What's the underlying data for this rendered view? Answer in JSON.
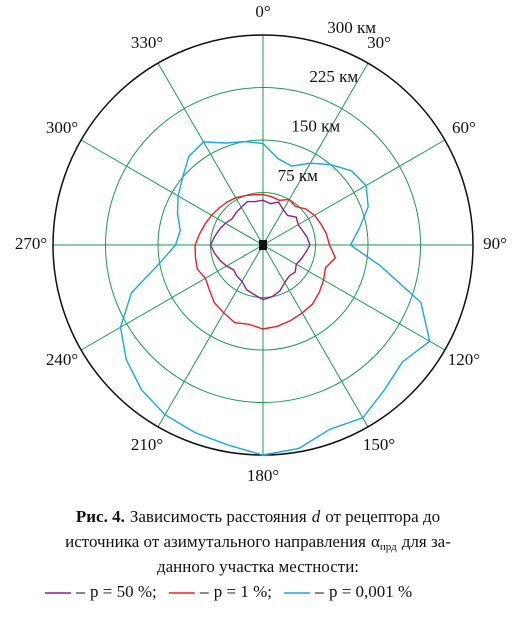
{
  "chart_data": {
    "type": "polar",
    "angles": [
      0,
      10,
      20,
      30,
      40,
      50,
      60,
      70,
      80,
      90,
      100,
      110,
      120,
      130,
      140,
      150,
      160,
      170,
      180,
      190,
      200,
      210,
      220,
      230,
      240,
      250,
      260,
      270,
      280,
      290,
      300,
      310,
      320,
      330,
      340,
      350
    ],
    "rlim": [
      0,
      300
    ],
    "rticks": [
      {
        "value": 75,
        "label": "75 км"
      },
      {
        "value": 150,
        "label": "150 км"
      },
      {
        "value": 225,
        "label": "225 км"
      },
      {
        "value": 300,
        "label": "300 км"
      }
    ],
    "angle_ticks": [
      {
        "value": 0,
        "label": "0°"
      },
      {
        "value": 30,
        "label": "30°"
      },
      {
        "value": 60,
        "label": "60°"
      },
      {
        "value": 90,
        "label": "90°"
      },
      {
        "value": 120,
        "label": "120°"
      },
      {
        "value": 150,
        "label": "150°"
      },
      {
        "value": 180,
        "label": "180°"
      },
      {
        "value": 210,
        "label": "210°"
      },
      {
        "value": 240,
        "label": "240°"
      },
      {
        "value": 270,
        "label": "270°"
      },
      {
        "value": 300,
        "label": "300°"
      },
      {
        "value": 330,
        "label": "330°"
      }
    ],
    "grid_color": "#1a9a50",
    "series": [
      {
        "name": "p = 50 %",
        "color": "#8e1f8e",
        "values": [
          64,
          60,
          65,
          58,
          55,
          62,
          58,
          60,
          64,
          67,
          62,
          58,
          55,
          60,
          58,
          62,
          70,
          75,
          78,
          72,
          68,
          60,
          58,
          55,
          60,
          65,
          70,
          75,
          70,
          66,
          62,
          58,
          60,
          62,
          66,
          63
        ]
      },
      {
        "name": "p = 1 %",
        "color": "#e8202a",
        "values": [
          72,
          70,
          68,
          75,
          72,
          80,
          85,
          88,
          92,
          95,
          105,
          95,
          100,
          105,
          110,
          112,
          115,
          118,
          120,
          115,
          118,
          112,
          108,
          100,
          95,
          100,
          98,
          97,
          92,
          88,
          85,
          82,
          80,
          78,
          75,
          73
        ]
      },
      {
        "name": "p = 0,001 %",
        "color": "#1aa7e0",
        "values": [
          145,
          125,
          120,
          135,
          150,
          165,
          170,
          160,
          140,
          125,
          170,
          240,
          275,
          260,
          270,
          285,
          280,
          295,
          300,
          290,
          285,
          280,
          270,
          255,
          235,
          200,
          150,
          125,
          120,
          130,
          140,
          150,
          165,
          170,
          155,
          150
        ]
      }
    ],
    "legend_separator": ";",
    "caption": {
      "label": "Рис. 4.",
      "line_1a": "Зависимость расстояния",
      "symbol": "d",
      "line_1b": "от рецептора до",
      "line_2a": "источника от азимутального направления",
      "alpha": "α",
      "alpha_subscript": "прд",
      "line_2b": "для за-",
      "line_3": "данного участка местности:"
    }
  }
}
